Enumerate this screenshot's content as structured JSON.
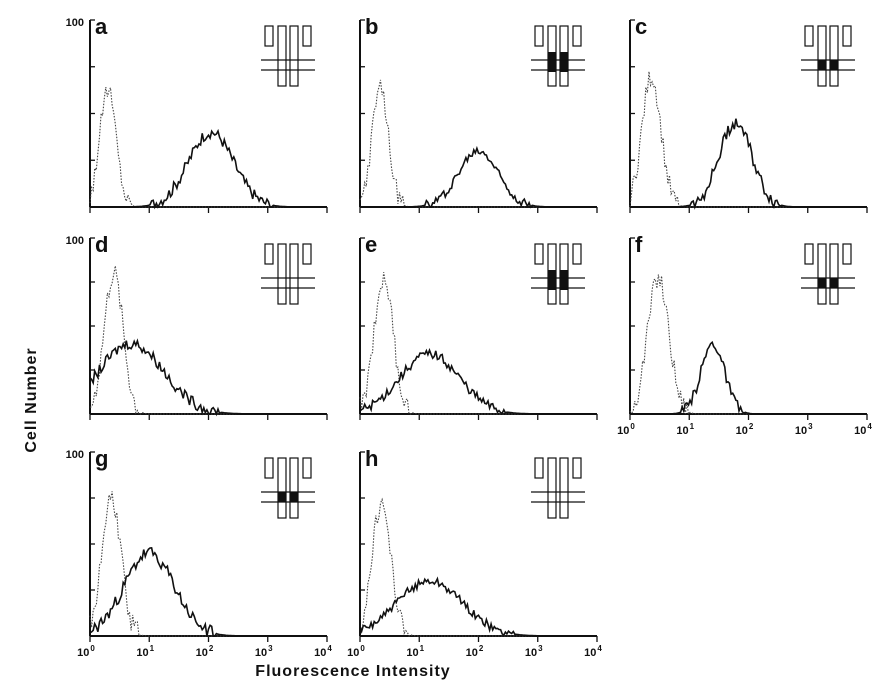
{
  "figure": {
    "ylabel": "Cell Number",
    "xlabel": "Fluorescence Intensity",
    "y_tick_label": "100"
  },
  "chart_data": [
    {
      "panel": "a",
      "type": "line",
      "xscale": "log",
      "xlim": [
        1,
        10000
      ],
      "ylim": [
        0,
        100
      ],
      "x_tick_labels_shown": false,
      "y_tick_label_shown": true,
      "series": [
        {
          "style": "dotted",
          "peak_x": 2.0,
          "peak_y": 63,
          "spread": 0.14
        },
        {
          "style": "solid",
          "peak_x": 110,
          "peak_y": 40,
          "spread": 0.38
        }
      ],
      "inset": {
        "filled": "none"
      }
    },
    {
      "panel": "b",
      "type": "line",
      "xscale": "log",
      "xlim": [
        1,
        10000
      ],
      "ylim": [
        0,
        100
      ],
      "x_tick_labels_shown": false,
      "y_tick_label_shown": false,
      "series": [
        {
          "style": "dotted",
          "peak_x": 2.2,
          "peak_y": 63,
          "spread": 0.14
        },
        {
          "style": "solid",
          "peak_x": 100,
          "peak_y": 30,
          "spread": 0.34
        }
      ],
      "inset": {
        "filled": "upper"
      }
    },
    {
      "panel": "c",
      "type": "line",
      "xscale": "log",
      "xlim": [
        1,
        10000
      ],
      "ylim": [
        0,
        100
      ],
      "x_tick_labels_shown": false,
      "y_tick_label_shown": false,
      "series": [
        {
          "style": "dotted",
          "peak_x": 2.3,
          "peak_y": 70,
          "spread": 0.16
        },
        {
          "style": "solid",
          "peak_x": 60,
          "peak_y": 45,
          "spread": 0.28
        }
      ],
      "inset": {
        "filled": "lower"
      }
    },
    {
      "panel": "d",
      "type": "line",
      "xscale": "log",
      "xlim": [
        1,
        10000
      ],
      "ylim": [
        0,
        100
      ],
      "x_tick_labels_shown": false,
      "y_tick_label_shown": true,
      "series": [
        {
          "style": "dotted",
          "peak_x": 2.5,
          "peak_y": 80,
          "spread": 0.16
        },
        {
          "style": "solid",
          "peak_x": 5,
          "peak_y": 40,
          "spread": 0.55
        }
      ],
      "inset": {
        "filled": "none"
      }
    },
    {
      "panel": "e",
      "type": "line",
      "xscale": "log",
      "xlim": [
        1,
        10000
      ],
      "ylim": [
        0,
        100
      ],
      "x_tick_labels_shown": false,
      "y_tick_label_shown": false,
      "series": [
        {
          "style": "dotted",
          "peak_x": 2.5,
          "peak_y": 78,
          "spread": 0.16
        },
        {
          "style": "solid",
          "peak_x": 15,
          "peak_y": 34,
          "spread": 0.5
        }
      ],
      "inset": {
        "filled": "upper"
      }
    },
    {
      "panel": "f",
      "type": "line",
      "xscale": "log",
      "xlim": [
        1,
        10000
      ],
      "ylim": [
        0,
        100
      ],
      "x_tick_labels_shown": true,
      "y_tick_label_shown": false,
      "x_tick_labels": [
        "10",
        "10",
        "10",
        "10",
        "10"
      ],
      "x_tick_exponents": [
        "0",
        "1",
        "2",
        "3",
        "4"
      ],
      "series": [
        {
          "style": "dotted",
          "peak_x": 3,
          "peak_y": 77,
          "spread": 0.18
        },
        {
          "style": "solid",
          "peak_x": 25,
          "peak_y": 40,
          "spread": 0.2
        }
      ],
      "inset": {
        "filled": "lower"
      }
    },
    {
      "panel": "g",
      "type": "line",
      "xscale": "log",
      "xlim": [
        1,
        10000
      ],
      "ylim": [
        0,
        100
      ],
      "x_tick_labels_shown": true,
      "y_tick_label_shown": true,
      "x_tick_labels": [
        "10",
        "10",
        "10",
        "10",
        "10"
      ],
      "x_tick_exponents": [
        "0",
        "1",
        "2",
        "3",
        "4"
      ],
      "series": [
        {
          "style": "dotted",
          "peak_x": 2.3,
          "peak_y": 75,
          "spread": 0.16
        },
        {
          "style": "solid",
          "peak_x": 10,
          "peak_y": 45,
          "spread": 0.42
        }
      ],
      "inset": {
        "filled": "lower"
      }
    },
    {
      "panel": "h",
      "type": "line",
      "xscale": "log",
      "xlim": [
        1,
        10000
      ],
      "ylim": [
        0,
        100
      ],
      "x_tick_labels_shown": true,
      "y_tick_label_shown": false,
      "x_tick_labels": [
        "10",
        "10",
        "10",
        "10",
        "10"
      ],
      "x_tick_exponents": [
        "0",
        "1",
        "2",
        "3",
        "4"
      ],
      "series": [
        {
          "style": "dotted",
          "peak_x": 2.3,
          "peak_y": 72,
          "spread": 0.16
        },
        {
          "style": "solid",
          "peak_x": 15,
          "peak_y": 30,
          "spread": 0.55
        }
      ],
      "inset": {
        "filled": "none"
      }
    }
  ]
}
